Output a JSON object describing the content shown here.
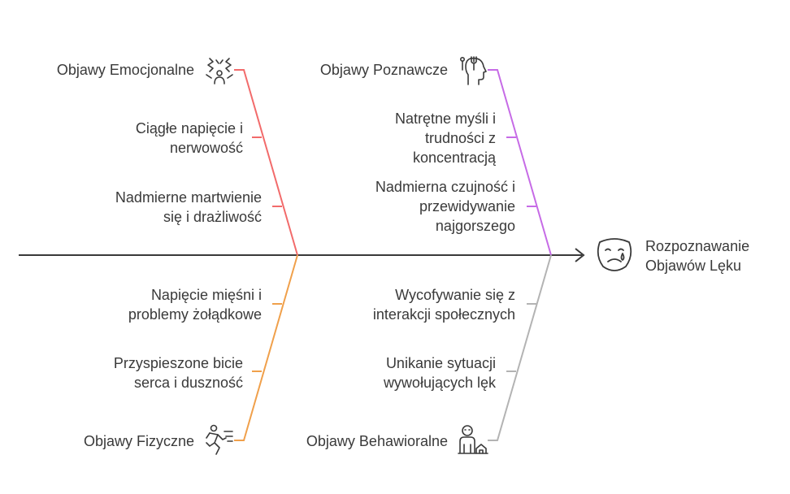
{
  "result": {
    "label_line1": "Rozpoznawanie",
    "label_line2": "Objawów Lęku",
    "icon": "crying-mask-icon"
  },
  "colors": {
    "emotional": "#f26b6b",
    "cognitive": "#c66be6",
    "physical": "#f0a04b",
    "behavioral": "#b3b3b3",
    "spine": "#3a3a3a"
  },
  "categories": {
    "emotional": {
      "title": "Objawy Emocjonalne",
      "icon": "stress-person-icon",
      "causes": [
        {
          "line1": "Ciągłe napięcie i",
          "line2": "nerwowość"
        },
        {
          "line1": "Nadmierne martwienie",
          "line2": "się i drażliwość"
        }
      ]
    },
    "cognitive": {
      "title": "Objawy Poznawcze",
      "icon": "head-thoughts-icon",
      "causes": [
        {
          "line1": "Natrętne myśli i",
          "line2": "trudności z",
          "line3": "koncentracją"
        },
        {
          "line1": "Nadmierna czujność i",
          "line2": "przewidywanie",
          "line3": "najgorszego"
        }
      ]
    },
    "physical": {
      "title": "Objawy Fizyczne",
      "icon": "running-person-icon",
      "causes": [
        {
          "line1": "Napięcie mięśni i",
          "line2": "problemy żołądkowe"
        },
        {
          "line1": "Przyspieszone bicie",
          "line2": "serca i duszność"
        }
      ]
    },
    "behavioral": {
      "title": "Objawy Behawioralne",
      "icon": "person-home-icon",
      "causes": [
        {
          "line1": "Wycofywanie się z",
          "line2": "interakcji społecznych"
        },
        {
          "line1": "Unikanie sytuacji",
          "line2": "wywołujących lęk"
        }
      ]
    }
  }
}
